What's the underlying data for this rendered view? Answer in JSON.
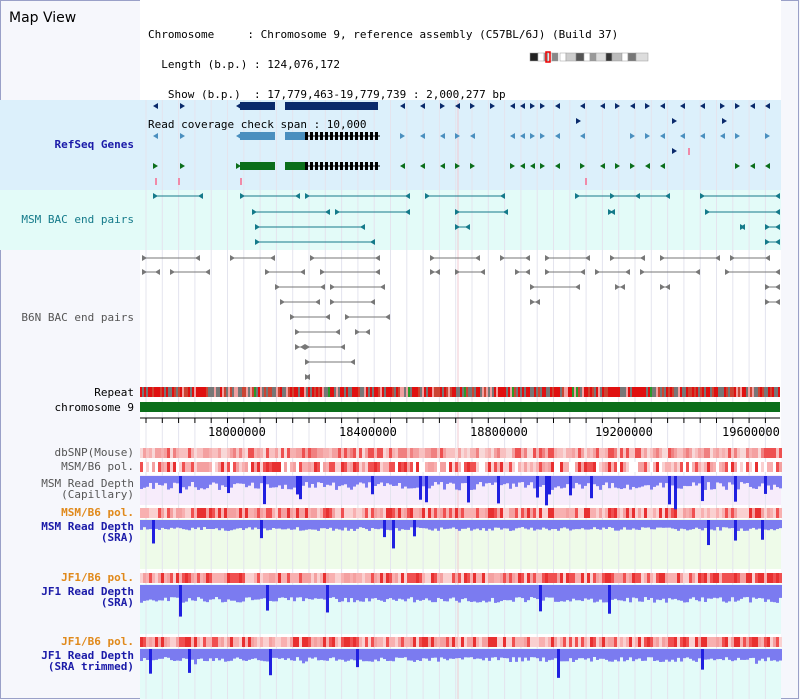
{
  "header": {
    "title": "Map View",
    "info": [
      "Chromosome     : Chromosome 9, reference assembly (C57BL/6J) (Build 37)",
      "  Length (b.p.) : 124,076,172",
      "   Show (b.p.)  : 17,779,463-19,779,739 : 2,000,277 bp",
      "Read coverage check span : 10,000"
    ]
  },
  "tracks": {
    "refseq": "RefSeq Genes",
    "msm_bac": "MSM BAC end pairs",
    "b6n_bac": "B6N BAC end pairs",
    "repeat": "Repeat",
    "chromosome": "chromosome 9",
    "dbsnp": "dbSNP(Mouse)",
    "msm_b6_pol": "MSM/B6 pol.",
    "msm_depth_cap": "MSM Read Depth\n(Capillary)",
    "msm_b6_pol2": "MSM/B6 pol.",
    "msm_depth_sra": "MSM Read Depth\n(SRA)",
    "jf1_b6_pol": "JF1/B6 pol.",
    "jf1_depth_sra": "JF1 Read Depth\n(SRA)",
    "jf1_b6_pol2": "JF1/B6 pol.",
    "jf1_depth_trim": "JF1 Read Depth\n(SRA trimmed)"
  },
  "axis": {
    "ticks": [
      "18000000",
      "18400000",
      "18800000",
      "19200000",
      "19600000"
    ]
  },
  "colors": {
    "refseq_bg": "#dcf0fb",
    "bac_bg": "#e3fbf8",
    "navy": "#0a2a6b",
    "steel": "#4a8fbf",
    "green": "#0b6e1a",
    "chromosome": "#0b6e1a",
    "depth": "#7b7bf0",
    "depth_dark": "#2020e0"
  }
}
